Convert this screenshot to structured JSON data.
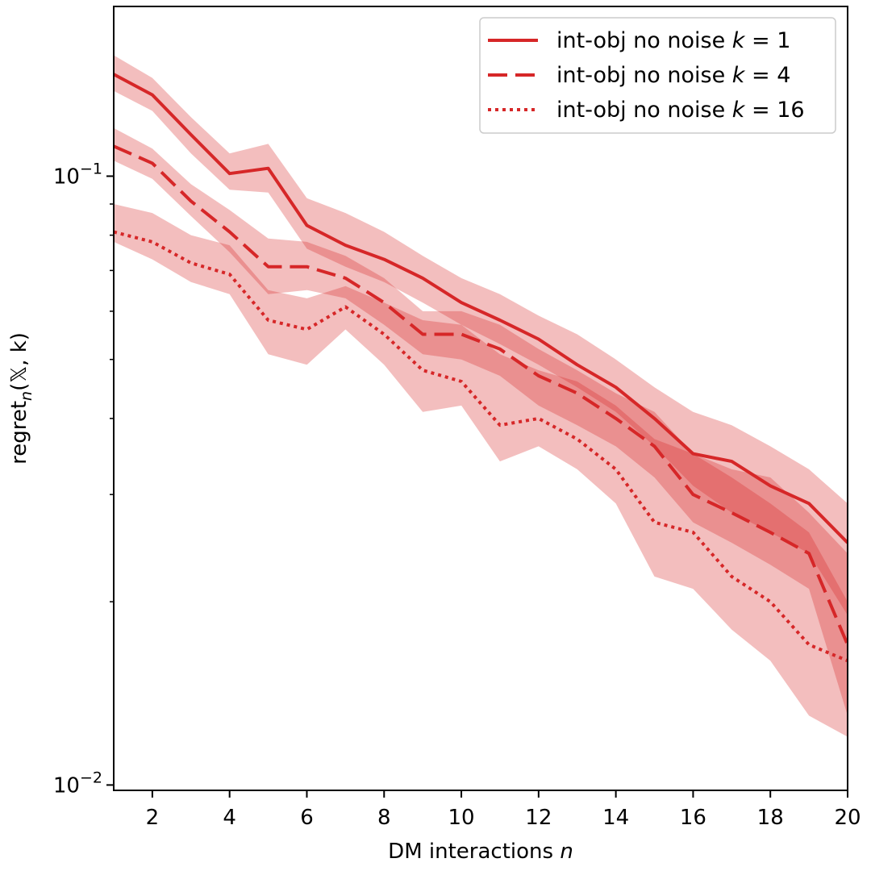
{
  "chart_data": {
    "type": "line",
    "yscale": "log",
    "x": [
      1,
      2,
      3,
      4,
      5,
      6,
      7,
      8,
      9,
      10,
      11,
      12,
      13,
      14,
      15,
      16,
      17,
      18,
      19,
      20
    ],
    "xlim": [
      1,
      20
    ],
    "ylim": [
      0.0098,
      0.19
    ],
    "xticks": [
      2,
      4,
      6,
      8,
      10,
      12,
      14,
      16,
      18,
      20
    ],
    "xlabel_text": "DM interactions",
    "xlabel_var": "n",
    "ylabel_base": "regret",
    "ylabel_sub": "n",
    "ylabel_args": "(𝕏, k)",
    "yticks_major": [
      {
        "value": 0.1,
        "base": "10",
        "exp": "−1"
      },
      {
        "value": 0.01,
        "base": "10",
        "exp": "−2"
      }
    ],
    "yticks_minor": [
      0.02,
      0.03,
      0.04,
      0.05,
      0.06,
      0.07,
      0.08,
      0.09
    ],
    "colors": {
      "line": "#d62728",
      "band": "#d62728",
      "band_opacity": 0.3
    },
    "legend_position": "upper right",
    "series": [
      {
        "name": "int-obj no noise",
        "k_text": "k = 1",
        "dash": "solid",
        "mean": [
          0.147,
          0.136,
          0.117,
          0.101,
          0.103,
          0.083,
          0.077,
          0.073,
          0.068,
          0.062,
          0.058,
          0.054,
          0.049,
          0.045,
          0.04,
          0.035,
          0.034,
          0.031,
          0.029,
          0.025
        ],
        "lower": [
          0.138,
          0.128,
          0.109,
          0.095,
          0.094,
          0.076,
          0.071,
          0.067,
          0.062,
          0.057,
          0.053,
          0.049,
          0.045,
          0.041,
          0.036,
          0.031,
          0.028,
          0.026,
          0.024,
          0.019
        ],
        "upper": [
          0.158,
          0.145,
          0.125,
          0.109,
          0.113,
          0.092,
          0.087,
          0.081,
          0.074,
          0.068,
          0.064,
          0.059,
          0.055,
          0.05,
          0.045,
          0.041,
          0.039,
          0.036,
          0.033,
          0.029
        ]
      },
      {
        "name": "int-obj no noise",
        "k_text": "k = 4",
        "dash": "dashed",
        "mean": [
          0.112,
          0.105,
          0.091,
          0.081,
          0.071,
          0.071,
          0.068,
          0.062,
          0.055,
          0.055,
          0.052,
          0.047,
          0.044,
          0.04,
          0.036,
          0.03,
          0.028,
          0.026,
          0.024,
          0.017
        ],
        "lower": [
          0.106,
          0.099,
          0.086,
          0.075,
          0.064,
          0.065,
          0.063,
          0.057,
          0.051,
          0.05,
          0.047,
          0.042,
          0.039,
          0.036,
          0.032,
          0.027,
          0.025,
          0.023,
          0.021,
          0.013
        ],
        "upper": [
          0.12,
          0.111,
          0.097,
          0.088,
          0.079,
          0.078,
          0.074,
          0.068,
          0.06,
          0.06,
          0.057,
          0.052,
          0.048,
          0.044,
          0.041,
          0.035,
          0.032,
          0.029,
          0.026,
          0.02
        ]
      },
      {
        "name": "int-obj no noise",
        "k_text": "k = 16",
        "dash": "dotted",
        "mean": [
          0.081,
          0.078,
          0.072,
          0.069,
          0.058,
          0.056,
          0.061,
          0.055,
          0.048,
          0.046,
          0.039,
          0.04,
          0.037,
          0.033,
          0.027,
          0.026,
          0.022,
          0.02,
          0.017,
          0.016
        ],
        "lower": [
          0.078,
          0.073,
          0.067,
          0.064,
          0.051,
          0.049,
          0.056,
          0.049,
          0.041,
          0.042,
          0.034,
          0.036,
          0.033,
          0.029,
          0.022,
          0.021,
          0.018,
          0.016,
          0.013,
          0.012
        ],
        "upper": [
          0.09,
          0.087,
          0.08,
          0.077,
          0.065,
          0.063,
          0.066,
          0.062,
          0.058,
          0.057,
          0.051,
          0.048,
          0.046,
          0.042,
          0.037,
          0.035,
          0.033,
          0.032,
          0.028,
          0.024
        ]
      }
    ]
  }
}
